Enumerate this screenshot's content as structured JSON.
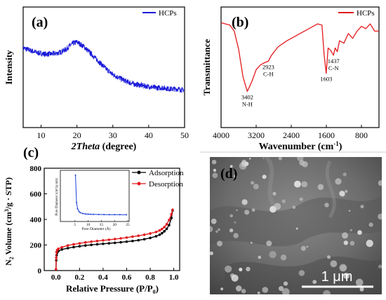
{
  "panel_labels": {
    "a": "(a)",
    "b": "(b)",
    "c": "(c)",
    "d": "(d)"
  },
  "colors": {
    "xrd": "#1a1ad9",
    "ftir": "#e31a1c",
    "adsorption": "#000000",
    "desorption": "#e31a1c",
    "inset": "#1a3fd9",
    "sem_bg": "#6a6a6a"
  },
  "chart_data": [
    {
      "panel": "a",
      "type": "line",
      "title": "",
      "xlabel_italic": "2Theta",
      "xlabel_rest": " (degree)",
      "ylabel": "Intensity",
      "legend": "HCPs",
      "legend_position": "top-right",
      "xlim": [
        5,
        50
      ],
      "ylim": [
        0,
        1
      ],
      "yticks_shown": false,
      "xticks": [
        10,
        20,
        30,
        40,
        50
      ],
      "x": [
        5,
        7,
        9,
        11,
        13,
        15,
        17,
        18,
        19,
        20,
        21,
        22,
        24,
        26,
        28,
        30,
        32,
        34,
        36,
        38,
        40,
        42,
        44,
        46,
        48,
        50
      ],
      "y": [
        0.66,
        0.64,
        0.62,
        0.61,
        0.61,
        0.62,
        0.65,
        0.68,
        0.7,
        0.71,
        0.69,
        0.67,
        0.61,
        0.55,
        0.49,
        0.44,
        0.41,
        0.38,
        0.36,
        0.35,
        0.34,
        0.33,
        0.33,
        0.32,
        0.32,
        0.31
      ]
    },
    {
      "panel": "b",
      "type": "line",
      "title": "",
      "xlabel": "Wavenumber (cm",
      "xlabel_sup": "-1",
      "xlabel_end": ")",
      "ylabel": "Transmittance",
      "legend": "HCPs",
      "legend_position": "top-right",
      "xlim": [
        4000,
        400
      ],
      "ylim": [
        0,
        1
      ],
      "yticks_shown": false,
      "xticks": [
        4000,
        3200,
        2400,
        1600,
        800
      ],
      "x": [
        4000,
        3900,
        3800,
        3700,
        3600,
        3500,
        3402,
        3300,
        3200,
        3100,
        3000,
        2923,
        2850,
        2700,
        2500,
        2300,
        2100,
        1900,
        1800,
        1700,
        1650,
        1603,
        1560,
        1500,
        1437,
        1400,
        1350,
        1300,
        1200,
        1100,
        1000,
        900,
        800,
        700,
        600,
        500,
        400
      ],
      "y": [
        0.87,
        0.86,
        0.85,
        0.8,
        0.65,
        0.42,
        0.3,
        0.38,
        0.48,
        0.52,
        0.54,
        0.55,
        0.6,
        0.67,
        0.72,
        0.76,
        0.8,
        0.84,
        0.86,
        0.85,
        0.6,
        0.45,
        0.66,
        0.64,
        0.6,
        0.66,
        0.63,
        0.72,
        0.7,
        0.78,
        0.74,
        0.8,
        0.84,
        0.82,
        0.86,
        0.8,
        0.8
      ],
      "annotations": [
        {
          "x": 3402,
          "lines": [
            "3402",
            "N-H"
          ]
        },
        {
          "x": 2923,
          "lines": [
            "2923",
            "C-H"
          ]
        },
        {
          "x": 1603,
          "lines": [
            "1603"
          ]
        },
        {
          "x": 1437,
          "lines": [
            "1437",
            "C-N"
          ]
        }
      ]
    },
    {
      "panel": "c",
      "type": "line",
      "title": "",
      "xlabel": "Relative Pressure (P/P",
      "xlabel_sub": "0",
      "xlabel_end": ")",
      "ylabel": "N",
      "ylabel_sub": "2",
      "ylabel_rest": " Volume (cm",
      "ylabel_sup": "3",
      "ylabel_end": "/g · STP)",
      "legend_position": "top-right",
      "xlim": [
        -0.1,
        1.05
      ],
      "ylim": [
        0,
        800
      ],
      "xticks": [
        "0.0",
        "0.2",
        "0.4",
        "0.6",
        "0.8",
        "1.0"
      ],
      "yticks": [
        "0",
        "200",
        "400",
        "600",
        "800"
      ],
      "series": [
        {
          "name": "Adsorption",
          "x": [
            0.0,
            0.002,
            0.005,
            0.01,
            0.02,
            0.05,
            0.1,
            0.15,
            0.2,
            0.25,
            0.3,
            0.35,
            0.4,
            0.45,
            0.5,
            0.55,
            0.6,
            0.65,
            0.7,
            0.75,
            0.8,
            0.85,
            0.88,
            0.9,
            0.92,
            0.94,
            0.96,
            0.98,
            0.99
          ],
          "y": [
            0,
            80,
            120,
            140,
            152,
            165,
            175,
            183,
            190,
            196,
            201,
            205,
            209,
            213,
            217,
            221,
            226,
            231,
            237,
            245,
            255,
            268,
            280,
            292,
            307,
            326,
            355,
            410,
            470
          ]
        },
        {
          "name": "Desorption",
          "x": [
            0.99,
            0.98,
            0.96,
            0.94,
            0.92,
            0.9,
            0.88,
            0.85,
            0.8,
            0.75,
            0.7,
            0.65,
            0.6,
            0.55,
            0.5,
            0.45,
            0.4,
            0.35,
            0.3,
            0.25,
            0.2,
            0.15,
            0.1,
            0.05,
            0.02,
            0.01,
            0.005,
            0.002,
            0.0
          ],
          "y": [
            475,
            440,
            395,
            362,
            340,
            325,
            314,
            302,
            290,
            280,
            272,
            265,
            258,
            252,
            246,
            241,
            236,
            231,
            226,
            220,
            213,
            205,
            196,
            182,
            170,
            160,
            145,
            100,
            10
          ]
        }
      ],
      "inset": {
        "type": "line",
        "xlabel": "Pore Diameter (Å)",
        "ylabel": "Pore Diameter (cm³/g·nm)",
        "xlim": [
          0,
          25
        ],
        "xticks": [
          "5",
          "10",
          "15",
          "20",
          "25"
        ],
        "x": [
          5.2,
          5.6,
          6,
          6.5,
          7,
          8,
          9,
          10,
          11,
          12,
          14,
          16,
          18,
          20,
          22,
          24.5
        ],
        "y": [
          1.0,
          0.35,
          0.2,
          0.14,
          0.11,
          0.09,
          0.08,
          0.075,
          0.07,
          0.068,
          0.066,
          0.064,
          0.063,
          0.062,
          0.062,
          0.061
        ]
      }
    }
  ],
  "sem": {
    "scale_label": "1 μm"
  }
}
